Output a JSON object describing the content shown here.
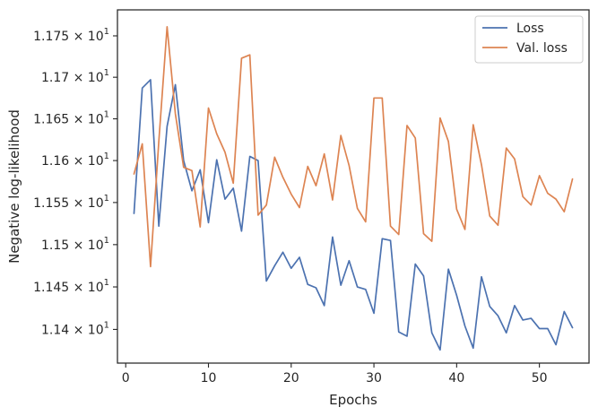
{
  "chart_data": {
    "type": "line",
    "xlabel": "Epochs",
    "ylabel": "Negative log-likelihood",
    "xlim": [
      -1,
      56
    ],
    "ylim": [
      11.3605,
      11.7815
    ],
    "y_scale": "log",
    "grid": false,
    "legend_position": "top-right",
    "x_ticks": [
      0,
      10,
      20,
      30,
      40,
      50
    ],
    "x_tick_labels": [
      "0",
      "10",
      "20",
      "30",
      "40",
      "50"
    ],
    "y_ticks": [
      11.4,
      11.45,
      11.5,
      11.55,
      11.6,
      11.65,
      11.7,
      11.75
    ],
    "y_tick_labels": [
      {
        "mantissa": "1.14",
        "base": "10",
        "exp": "1"
      },
      {
        "mantissa": "1.145",
        "base": "10",
        "exp": "1"
      },
      {
        "mantissa": "1.15",
        "base": "10",
        "exp": "1"
      },
      {
        "mantissa": "1.155",
        "base": "10",
        "exp": "1"
      },
      {
        "mantissa": "1.16",
        "base": "10",
        "exp": "1"
      },
      {
        "mantissa": "1.165",
        "base": "10",
        "exp": "1"
      },
      {
        "mantissa": "1.17",
        "base": "10",
        "exp": "1"
      },
      {
        "mantissa": "1.175",
        "base": "10",
        "exp": "1"
      }
    ],
    "x": [
      1,
      2,
      3,
      4,
      5,
      6,
      7,
      8,
      9,
      10,
      11,
      12,
      13,
      14,
      15,
      16,
      17,
      18,
      19,
      20,
      21,
      22,
      23,
      24,
      25,
      26,
      27,
      28,
      29,
      30,
      31,
      32,
      33,
      34,
      35,
      36,
      37,
      38,
      39,
      40,
      41,
      42,
      43,
      44,
      45,
      46,
      47,
      48,
      49,
      50,
      51,
      52,
      53,
      54
    ],
    "series": [
      {
        "name": "Loss",
        "color": "#4c72b0",
        "values": [
          11.537,
          11.687,
          11.697,
          11.522,
          11.641,
          11.691,
          11.6,
          11.564,
          11.589,
          11.526,
          11.601,
          11.554,
          11.567,
          11.516,
          11.605,
          11.6,
          11.457,
          11.475,
          11.491,
          11.472,
          11.485,
          11.453,
          11.449,
          11.428,
          11.509,
          11.452,
          11.481,
          11.45,
          11.447,
          11.419,
          11.507,
          11.505,
          11.397,
          11.392,
          11.477,
          11.463,
          11.396,
          11.376,
          11.471,
          11.44,
          11.404,
          11.378,
          11.462,
          11.427,
          11.416,
          11.396,
          11.428,
          11.411,
          11.413,
          11.401,
          11.401,
          11.382,
          11.421,
          11.402
        ]
      },
      {
        "name": "Val. loss",
        "color": "#dd8452",
        "values": [
          11.584,
          11.62,
          11.474,
          11.623,
          11.761,
          11.656,
          11.592,
          11.588,
          11.521,
          11.663,
          11.632,
          11.61,
          11.573,
          11.723,
          11.727,
          11.535,
          11.547,
          11.604,
          11.58,
          11.56,
          11.544,
          11.593,
          11.57,
          11.608,
          11.553,
          11.63,
          11.594,
          11.543,
          11.527,
          11.675,
          11.675,
          11.522,
          11.512,
          11.642,
          11.627,
          11.513,
          11.504,
          11.651,
          11.623,
          11.542,
          11.518,
          11.643,
          11.595,
          11.534,
          11.523,
          11.615,
          11.602,
          11.557,
          11.547,
          11.582,
          11.561,
          11.554,
          11.539,
          11.578
        ]
      }
    ]
  }
}
